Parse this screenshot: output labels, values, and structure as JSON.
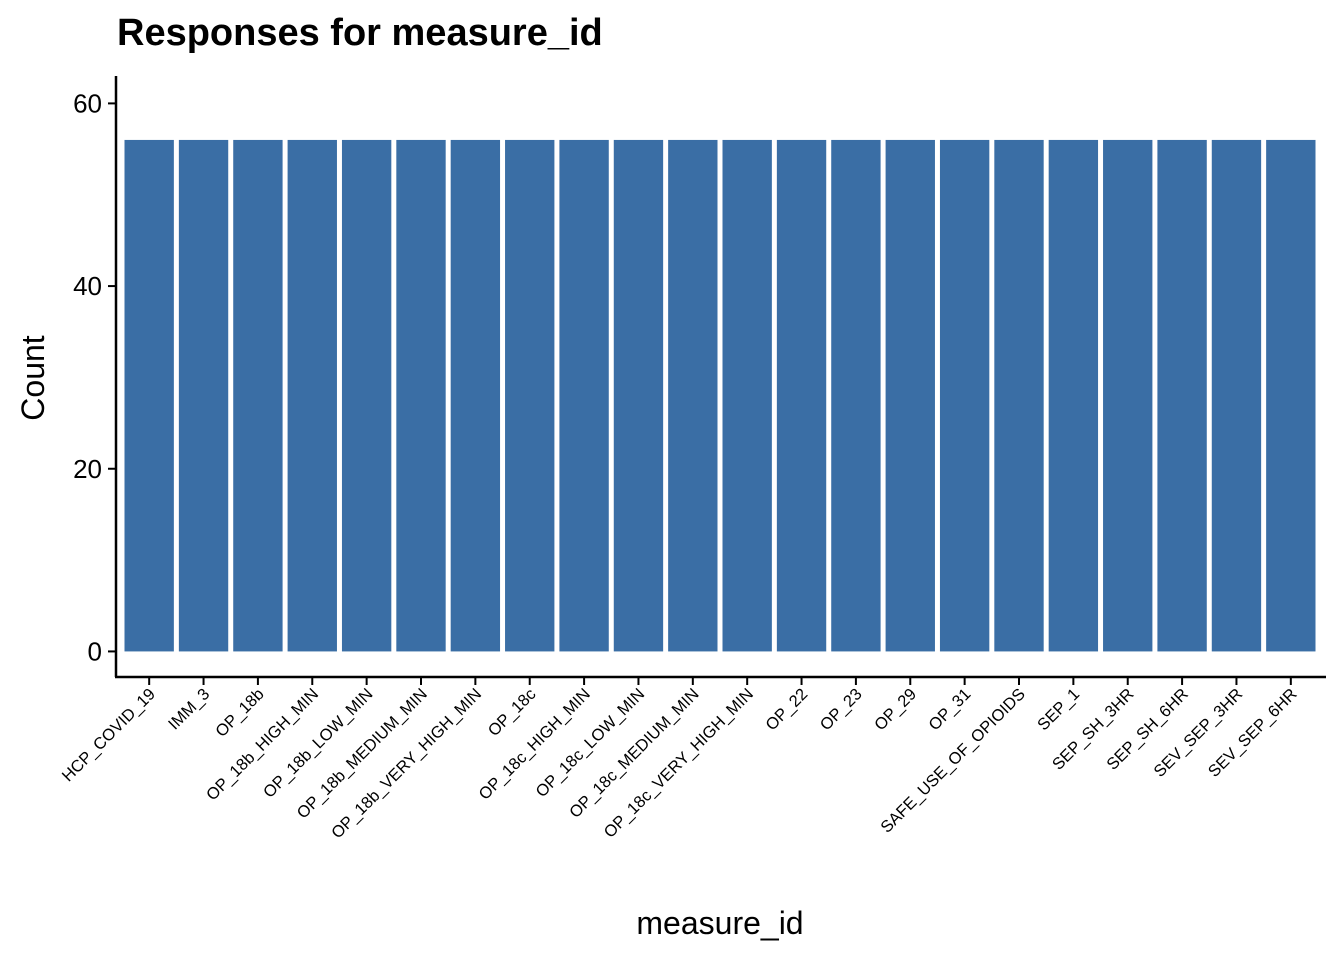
{
  "chart_data": {
    "type": "bar",
    "title": "Responses for measure_id",
    "xlabel": "measure_id",
    "ylabel": "Count",
    "ylim": [
      -2.8,
      63
    ],
    "yticks": [
      0,
      20,
      40,
      60
    ],
    "grid": false,
    "bar_color": "#3A6EA5",
    "categories": [
      "HCP_COVID_19",
      "IMM_3",
      "OP_18b",
      "OP_18b_HIGH_MIN",
      "OP_18b_LOW_MIN",
      "OP_18b_MEDIUM_MIN",
      "OP_18b_VERY_HIGH_MIN",
      "OP_18c",
      "OP_18c_HIGH_MIN",
      "OP_18c_LOW_MIN",
      "OP_18c_MEDIUM_MIN",
      "OP_18c_VERY_HIGH_MIN",
      "OP_22",
      "OP_23",
      "OP_29",
      "OP_31",
      "SAFE_USE_OF_OPIOIDS",
      "SEP_1",
      "SEP_SH_3HR",
      "SEP_SH_6HR",
      "SEV_SEP_3HR",
      "SEV_SEP_6HR"
    ],
    "values": [
      56,
      56,
      56,
      56,
      56,
      56,
      56,
      56,
      56,
      56,
      56,
      56,
      56,
      56,
      56,
      56,
      56,
      56,
      56,
      56,
      56,
      56
    ]
  }
}
